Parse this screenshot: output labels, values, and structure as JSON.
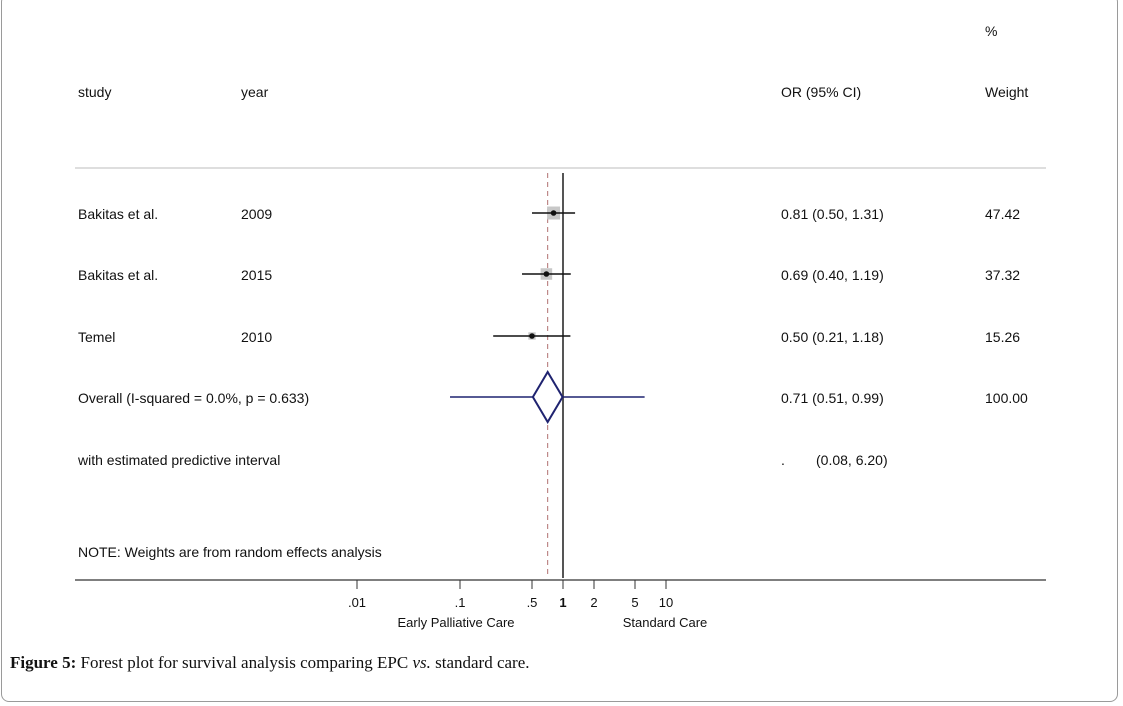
{
  "headers": {
    "study": "study",
    "year": "year",
    "or_ci": "OR (95% CI)",
    "pct": "%",
    "weight": "Weight"
  },
  "rows": [
    {
      "study": "Bakitas et al.",
      "year": "2009",
      "or_text": "0.81 (0.50, 1.31)",
      "weight": "47.42"
    },
    {
      "study": "Bakitas et al.",
      "year": "2015",
      "or_text": "0.69 (0.40, 1.19)",
      "weight": "37.32"
    },
    {
      "study": "Temel",
      "year": "2010",
      "or_text": "0.50 (0.21, 1.18)",
      "weight": "15.26"
    }
  ],
  "overall": {
    "label": "Overall  (I-squared = 0.0%, p = 0.633)",
    "or_text": "0.71 (0.51, 0.99)",
    "weight": "100.00"
  },
  "predictive": {
    "label": "with estimated predictive interval",
    "dot": ".",
    "ci_text": "(0.08, 6.20)"
  },
  "note": "NOTE: Weights are from random effects analysis",
  "axis": {
    "left_label": "Early Palliative Care",
    "right_label": "Standard Care"
  },
  "caption": {
    "prefix": "Figure 5:",
    "text1": " Forest plot for survival analysis comparing EPC ",
    "vs": "vs.",
    "text2": " standard care."
  },
  "colors": {
    "diamond": "#1f2370",
    "points": "#111111",
    "weight_box": "#c8c8c8",
    "ref_line": "#555555",
    "dash_line": "#b07070"
  },
  "chart_data": {
    "type": "forest",
    "measure": "OR",
    "scale": "log",
    "ticks": [
      {
        "value": 0.01,
        "label": ".01"
      },
      {
        "value": 0.1,
        "label": ".1"
      },
      {
        "value": 0.5,
        "label": ".5"
      },
      {
        "value": 1,
        "label": "1"
      },
      {
        "value": 2,
        "label": "2"
      },
      {
        "value": 5,
        "label": "5"
      },
      {
        "value": 10,
        "label": "10"
      }
    ],
    "null_value": 1,
    "studies": [
      {
        "study": "Bakitas et al.",
        "year": 2009,
        "or": 0.81,
        "lo": 0.5,
        "hi": 1.31,
        "weight": 47.42
      },
      {
        "study": "Bakitas et al.",
        "year": 2015,
        "or": 0.69,
        "lo": 0.4,
        "hi": 1.19,
        "weight": 37.32
      },
      {
        "study": "Temel",
        "year": 2010,
        "or": 0.5,
        "lo": 0.21,
        "hi": 1.18,
        "weight": 15.26
      }
    ],
    "overall": {
      "or": 0.71,
      "lo": 0.51,
      "hi": 0.99,
      "weight": 100.0
    },
    "predictive_interval": {
      "lo": 0.08,
      "hi": 6.2
    }
  }
}
